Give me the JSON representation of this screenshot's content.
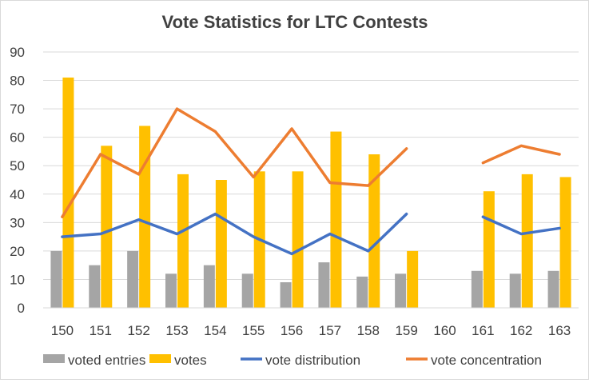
{
  "chart_data": {
    "type": "bar",
    "title": "Vote Statistics for LTC Contests",
    "xlabel": "",
    "ylabel": "",
    "ylim": [
      0,
      90
    ],
    "yticks": [
      0,
      10,
      20,
      30,
      40,
      50,
      60,
      70,
      80,
      90
    ],
    "grid": "horizontal",
    "legend_position": "bottom",
    "categories": [
      "150",
      "151",
      "152",
      "153",
      "154",
      "155",
      "156",
      "157",
      "158",
      "159",
      "160",
      "161",
      "162",
      "163"
    ],
    "series": [
      {
        "name": "voted entries",
        "kind": "bar",
        "color": "#a5a5a5",
        "values": [
          20,
          15,
          20,
          12,
          15,
          12,
          9,
          16,
          11,
          12,
          null,
          13,
          12,
          13
        ]
      },
      {
        "name": "votes",
        "kind": "bar",
        "color": "#ffc000",
        "values": [
          81,
          57,
          64,
          47,
          45,
          48,
          48,
          62,
          54,
          20,
          null,
          41,
          47,
          46
        ]
      },
      {
        "name": "vote distribution",
        "kind": "line",
        "color": "#4472c4",
        "values": [
          25,
          26,
          31,
          26,
          33,
          25,
          19,
          26,
          20,
          33,
          null,
          32,
          26,
          28
        ]
      },
      {
        "name": "vote concentration",
        "kind": "line",
        "color": "#ed7d31",
        "values": [
          32,
          54,
          47,
          70,
          62,
          46,
          63,
          44,
          43,
          56,
          null,
          51,
          57,
          54
        ]
      }
    ]
  }
}
